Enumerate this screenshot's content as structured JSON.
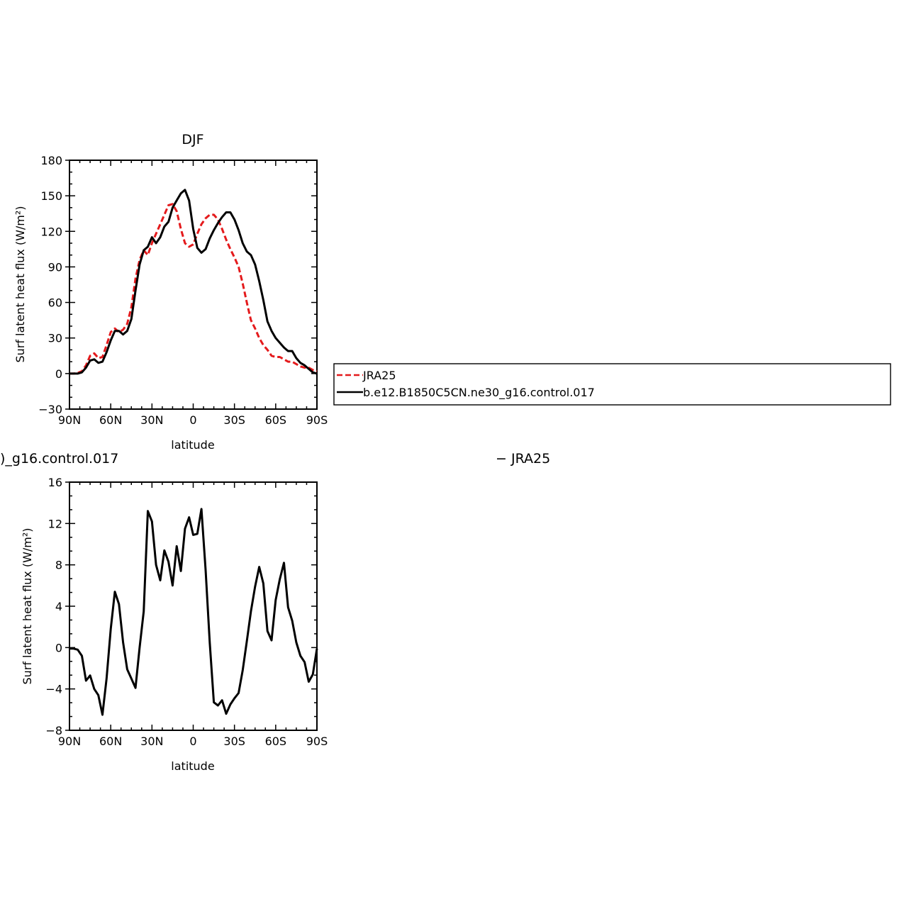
{
  "chart_data": [
    {
      "type": "line",
      "title": "DJF",
      "xlabel": "latitude",
      "ylabel": "Surf latent heat flux (W/m²)",
      "xlim": [
        -90,
        90
      ],
      "ylim": [
        -30,
        180
      ],
      "xticks": [
        -90,
        -60,
        -30,
        0,
        30,
        60,
        90
      ],
      "xtick_labels": [
        "90N",
        "60N",
        "30N",
        "0",
        "30S",
        "60S",
        "90S"
      ],
      "yticks": [
        -30,
        0,
        30,
        60,
        90,
        120,
        150,
        180
      ],
      "ytick_labels": [
        "−30",
        "0",
        "30",
        "60",
        "90",
        "120",
        "150",
        "180"
      ],
      "x_note": "x increases from 90N (left) to 90S (right); values are degrees with N negative",
      "series": [
        {
          "name": "JRA25",
          "color": "#e41a1c",
          "dash": "dashed",
          "x": [
            -90,
            -87,
            -84,
            -81,
            -78,
            -75,
            -72,
            -69,
            -66,
            -63,
            -60,
            -57,
            -54,
            -51,
            -48,
            -45,
            -42,
            -39,
            -36,
            -33,
            -30,
            -27,
            -24,
            -21,
            -18,
            -15,
            -12,
            -9,
            -6,
            -3,
            0,
            3,
            6,
            9,
            12,
            15,
            18,
            21,
            24,
            27,
            30,
            33,
            36,
            39,
            42,
            45,
            48,
            51,
            54,
            57,
            60,
            63,
            66,
            69,
            72,
            75,
            78,
            81,
            84,
            87,
            90
          ],
          "y": [
            0,
            0,
            0.5,
            2,
            7,
            15,
            17,
            13,
            14,
            24,
            35,
            38,
            35,
            37,
            42,
            56,
            80,
            96,
            104,
            100,
            110,
            118,
            126,
            134,
            142,
            143,
            137,
            122,
            110,
            107,
            109,
            118,
            126,
            131,
            134,
            134,
            130,
            122,
            113,
            105,
            98,
            90,
            76,
            60,
            45,
            38,
            30,
            24,
            20,
            15,
            14,
            14,
            12,
            10,
            10,
            8,
            6,
            5,
            5,
            3,
            2
          ]
        },
        {
          "name": "b.e12.B1850C5CN.ne30_g16.control.017",
          "color": "#000000",
          "dash": "solid",
          "x": [
            -90,
            -87,
            -84,
            -81,
            -78,
            -75,
            -72,
            -69,
            -66,
            -63,
            -60,
            -57,
            -54,
            -51,
            -48,
            -45,
            -42,
            -39,
            -36,
            -33,
            -30,
            -27,
            -24,
            -21,
            -18,
            -15,
            -12,
            -9,
            -6,
            -3,
            0,
            3,
            6,
            9,
            12,
            15,
            18,
            21,
            24,
            27,
            30,
            33,
            36,
            39,
            42,
            45,
            48,
            51,
            54,
            57,
            60,
            63,
            66,
            69,
            72,
            75,
            78,
            81,
            84,
            87,
            90
          ],
          "y": [
            0,
            0,
            0,
            1,
            5,
            11,
            12,
            9,
            10,
            18,
            28,
            36,
            36,
            33,
            36,
            46,
            70,
            92,
            104,
            107,
            115,
            110,
            115,
            124,
            128,
            140,
            146,
            152,
            155,
            146,
            122,
            106,
            102,
            105,
            114,
            121,
            127,
            132,
            136,
            136,
            130,
            121,
            110,
            103,
            100,
            92,
            78,
            62,
            44,
            36,
            30,
            26,
            22,
            19,
            19,
            13,
            9,
            7,
            4,
            1,
            0
          ]
        }
      ],
      "legend": {
        "placement": "right",
        "entries": [
          "JRA25",
          "b.e12.B1850C5CN.ne30_g16.control.017"
        ]
      }
    },
    {
      "type": "line",
      "title_left": ")_g16.control.017",
      "title_right": "− JRA25",
      "xlabel": "latitude",
      "ylabel": "Surf latent heat flux (W/m²)",
      "xlim": [
        -90,
        90
      ],
      "ylim": [
        -8,
        16
      ],
      "xticks": [
        -90,
        -60,
        -30,
        0,
        30,
        60,
        90
      ],
      "xtick_labels": [
        "90N",
        "60N",
        "30N",
        "0",
        "30S",
        "60S",
        "90S"
      ],
      "yticks": [
        -8,
        -4,
        0,
        4,
        8,
        12,
        16
      ],
      "ytick_labels": [
        "−8",
        "−4",
        "0",
        "4",
        "8",
        "12",
        "16"
      ],
      "series": [
        {
          "name": "",
          "color": "#000000",
          "dash": "solid",
          "x": [
            -90,
            -87,
            -84,
            -81,
            -78,
            -75,
            -72,
            -69,
            -66,
            -63,
            -60,
            -57,
            -54,
            -51,
            -48,
            -45,
            -42,
            -39,
            -36,
            -33,
            -30,
            -27,
            -24,
            -21,
            -18,
            -15,
            -12,
            -9,
            -6,
            -3,
            0,
            3,
            6,
            9,
            12,
            15,
            18,
            21,
            24,
            27,
            30,
            33,
            36,
            39,
            42,
            45,
            48,
            51,
            54,
            57,
            60,
            63,
            66,
            69,
            72,
            75,
            78,
            81,
            84,
            87,
            90
          ],
          "y": [
            -0.1,
            -0.1,
            -0.2,
            -0.8,
            -3.2,
            -2.7,
            -4,
            -4.6,
            -6.5,
            -3,
            1.8,
            5.4,
            4.2,
            0.5,
            -2.1,
            -3,
            -3.9,
            0,
            3.5,
            13.2,
            12.2,
            8,
            6.5,
            9.4,
            8.3,
            6,
            9.8,
            7.4,
            11.5,
            12.6,
            10.9,
            11,
            13.4,
            7.5,
            0.5,
            -5.3,
            -5.6,
            -5.1,
            -6.4,
            -5.5,
            -4.9,
            -4.4,
            -2.2,
            0.6,
            3.5,
            5.9,
            7.8,
            6.2,
            1.6,
            0.7,
            4.6,
            6.6,
            8.2,
            3.9,
            2.6,
            0.5,
            -0.8,
            -1.4,
            -3.3,
            -2.6,
            -0.1
          ]
        }
      ]
    }
  ]
}
